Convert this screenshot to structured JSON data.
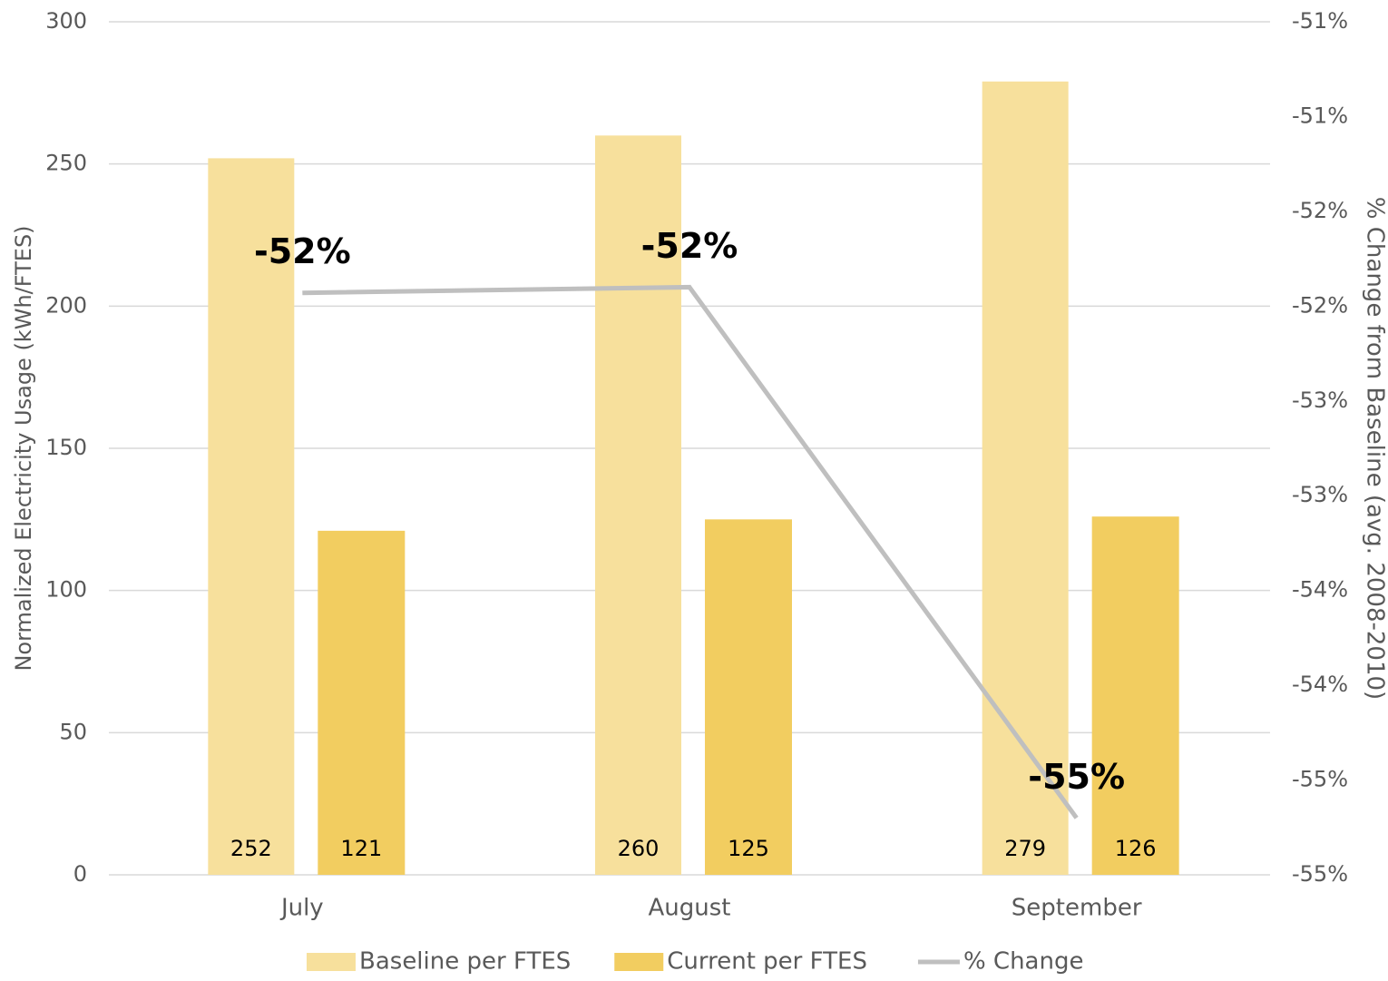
{
  "chart_data": {
    "type": "bar",
    "y_label": "Normalized Electricity Usage (kWh/FTES)",
    "y2_label": "% Change from Baseline (avg. 2008-2010)",
    "categories": [
      "July",
      "August",
      "September"
    ],
    "series": [
      {
        "name": "Baseline per FTES",
        "type": "bar",
        "color": "#f7e09c",
        "values": [
          252,
          260,
          279
        ]
      },
      {
        "name": "Current per FTES",
        "type": "bar",
        "color": "#f2cd60",
        "values": [
          121,
          125,
          126
        ]
      },
      {
        "name": "% Change",
        "type": "line",
        "axis": "y2",
        "color": "#bfbfbf",
        "values": [
          -51.93,
          -51.9,
          -54.7
        ],
        "value_labels": [
          "-52%",
          "-52%",
          "-55%"
        ]
      }
    ],
    "ylim": [
      0,
      300
    ],
    "yticks": [
      0,
      50,
      100,
      150,
      200,
      250,
      300
    ],
    "y2lim": [
      -55,
      -50.5
    ],
    "y2ticks": [
      {
        "value": -55,
        "label": "-55%"
      },
      {
        "value": -54.5,
        "label": "-55%"
      },
      {
        "value": -54,
        "label": "-54%"
      },
      {
        "value": -53.5,
        "label": "-54%"
      },
      {
        "value": -53,
        "label": "-53%"
      },
      {
        "value": -52.5,
        "label": "-53%"
      },
      {
        "value": -52,
        "label": "-52%"
      },
      {
        "value": -51.5,
        "label": "-52%"
      },
      {
        "value": -51,
        "label": "-51%"
      },
      {
        "value": -50.5,
        "label": "-51%"
      }
    ],
    "grid": true,
    "legend": "bottom"
  }
}
